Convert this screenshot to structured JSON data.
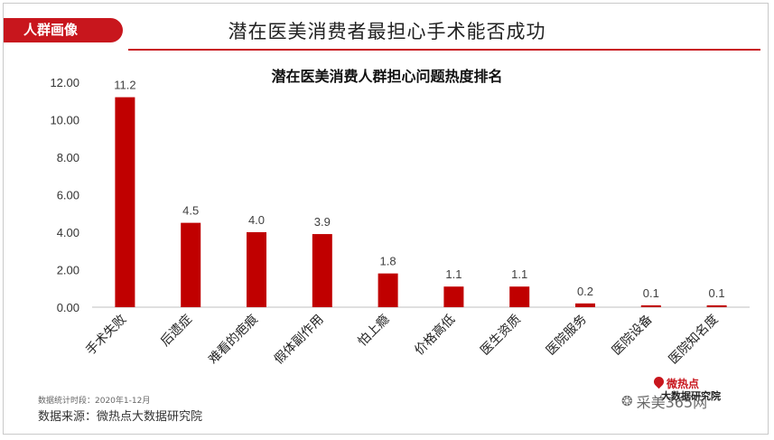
{
  "header": {
    "tag": "人群画像",
    "title": "潜在医美消费者最担心手术能否成功"
  },
  "chart_data": {
    "type": "bar",
    "title": "潜在医美消费人群担心问题热度排名",
    "categories": [
      "手术失败",
      "后遗症",
      "难看的疤痕",
      "假体副作用",
      "怕上瘾",
      "价格高低",
      "医生资质",
      "医院服务",
      "医院设备",
      "医院知名度"
    ],
    "values": [
      11.2,
      4.5,
      4.0,
      3.9,
      1.8,
      1.1,
      1.1,
      0.2,
      0.1,
      0.1
    ],
    "value_labels": [
      "11.2",
      "4.5",
      "4.0",
      "3.9",
      "1.8",
      "1.1",
      "1.1",
      "0.2",
      "0.1",
      "0.1"
    ],
    "yticks": [
      "0.00",
      "2.00",
      "4.00",
      "6.00",
      "8.00",
      "10.00",
      "12.00"
    ],
    "ylim": [
      0,
      12
    ],
    "grid": false,
    "bar_color": "#c00000"
  },
  "footer": {
    "stat_period": "数据统计时段：2020年1-12月",
    "source": "数据来源：微热点大数据研究院",
    "logo_top": "微热点",
    "logo_bottom": "大数据研究院",
    "watermark": "采美365网",
    "watermark_icon": "wechat-icon"
  },
  "colors": {
    "accent": "#c8161d",
    "bar": "#c00000"
  }
}
